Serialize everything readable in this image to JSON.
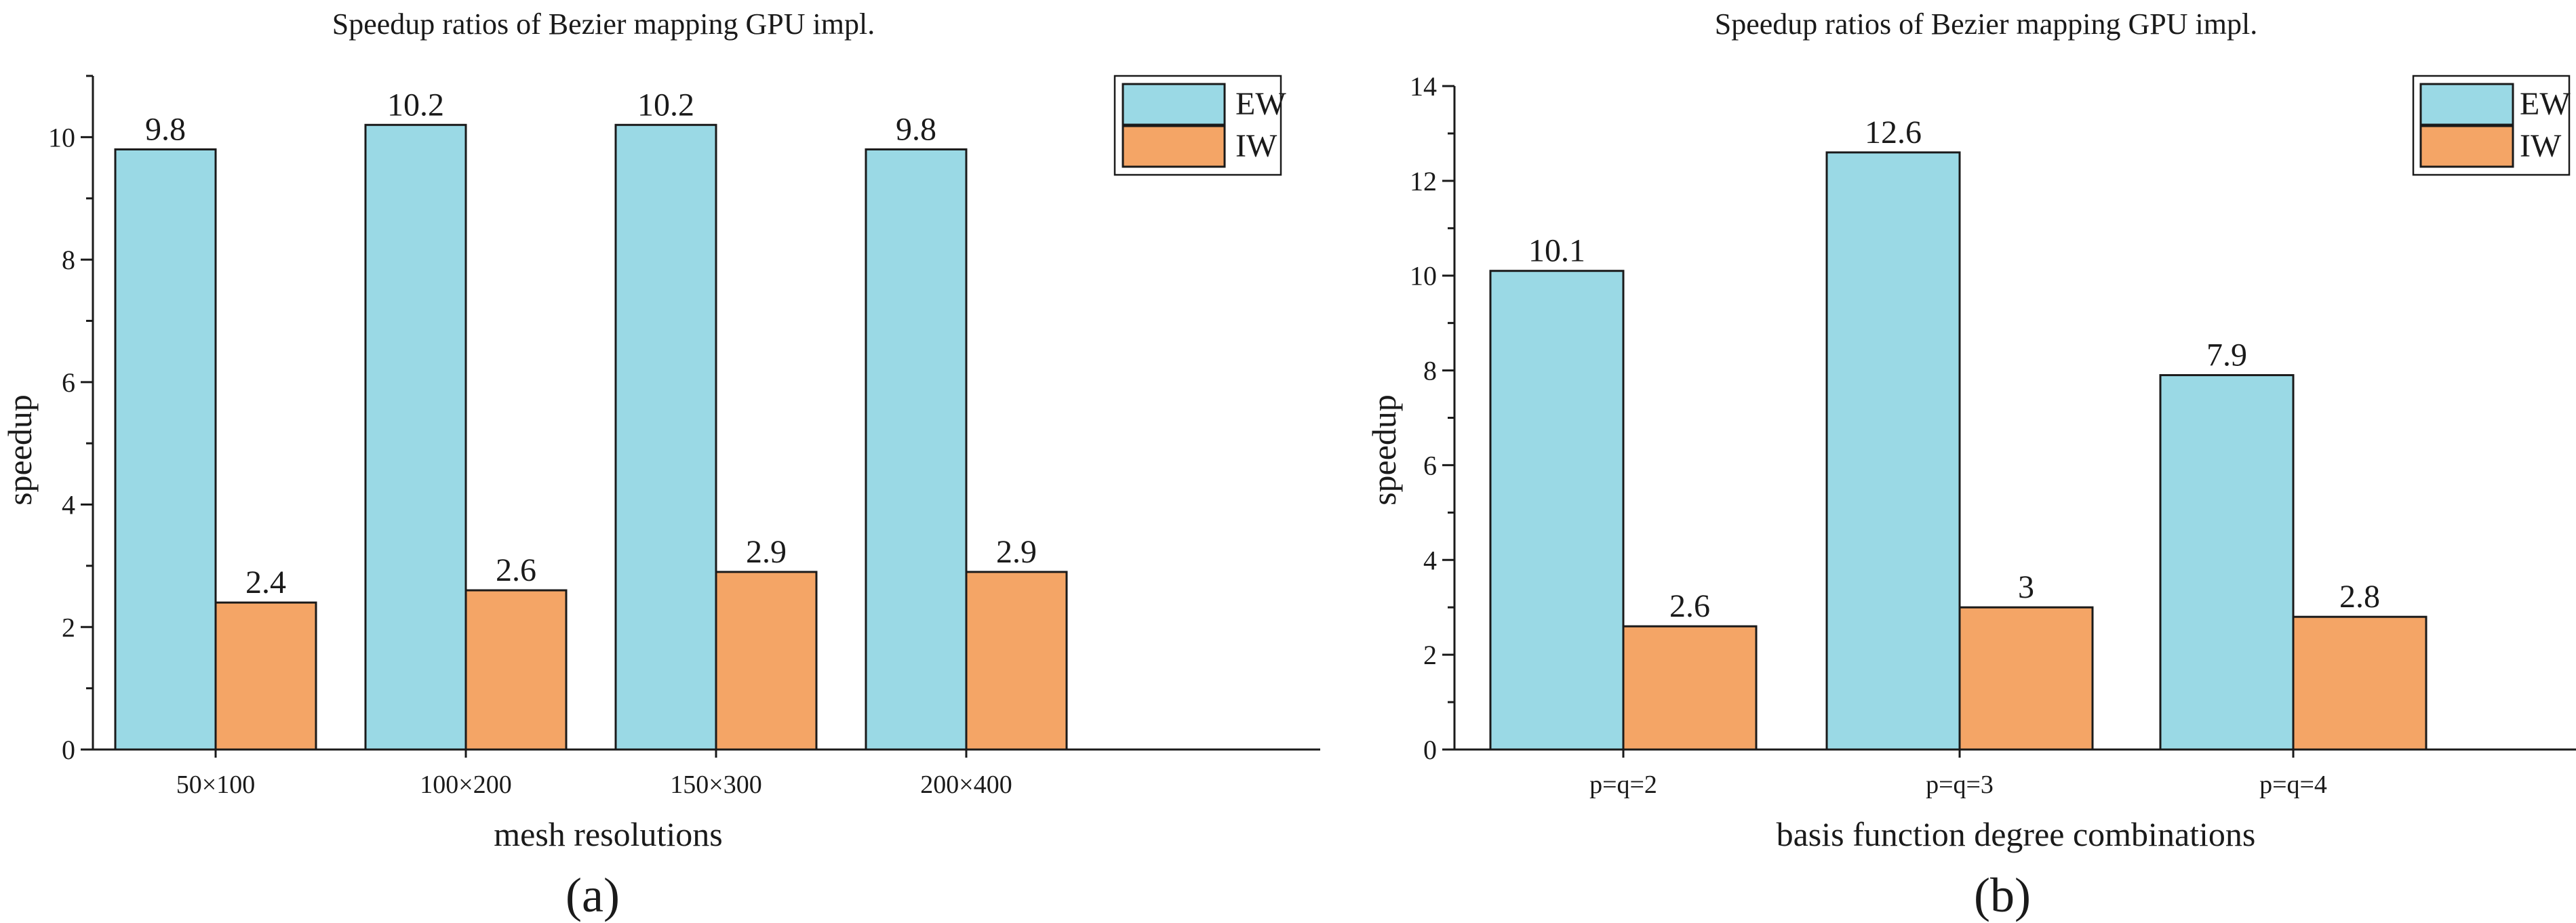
{
  "colors": {
    "EW": "#9ad9e5",
    "IW": "#f4a566"
  },
  "chart_data": [
    {
      "type": "bar",
      "title": "Speedup ratios of Bezier mapping GPU impl.",
      "xlabel": "mesh resolutions",
      "ylabel": "speedup",
      "caption": "(a)",
      "categories": [
        "50×100",
        "100×200",
        "150×300",
        "200×400"
      ],
      "series": [
        {
          "name": "EW",
          "values": [
            9.8,
            10.2,
            10.2,
            9.8
          ],
          "labels": [
            "9.8",
            "10.2",
            "10.2",
            "9.8"
          ]
        },
        {
          "name": "IW",
          "values": [
            2.4,
            2.6,
            2.9,
            2.9
          ],
          "labels": [
            "2.4",
            "2.6",
            "2.9",
            "2.9"
          ]
        }
      ],
      "ylim": [
        0,
        11
      ],
      "yticks": [
        0,
        2,
        4,
        6,
        8,
        10
      ],
      "ytick_labels": [
        "0",
        "2",
        "4",
        "6",
        "8",
        "10"
      ],
      "minor_ticks": true,
      "legend": "top-right",
      "grid": false
    },
    {
      "type": "bar",
      "title": "Speedup ratios of Bezier mapping GPU impl.",
      "xlabel": "basis function degree combinations",
      "ylabel": "speedup",
      "caption": "(b)",
      "categories": [
        "p=q=2",
        "p=q=3",
        "p=q=4"
      ],
      "series": [
        {
          "name": "EW",
          "values": [
            10.1,
            12.6,
            7.9
          ],
          "labels": [
            "10.1",
            "12.6",
            "7.9"
          ]
        },
        {
          "name": "IW",
          "values": [
            2.6,
            3.0,
            2.8
          ],
          "labels": [
            "2.6",
            "3",
            "2.8"
          ]
        }
      ],
      "ylim": [
        0,
        14
      ],
      "yticks": [
        0,
        2,
        4,
        6,
        8,
        10,
        12,
        14
      ],
      "ytick_labels": [
        "0",
        "2",
        "4",
        "6",
        "8",
        "10",
        "12",
        "14"
      ],
      "minor_ticks": true,
      "legend": "top-right",
      "grid": false
    }
  ]
}
